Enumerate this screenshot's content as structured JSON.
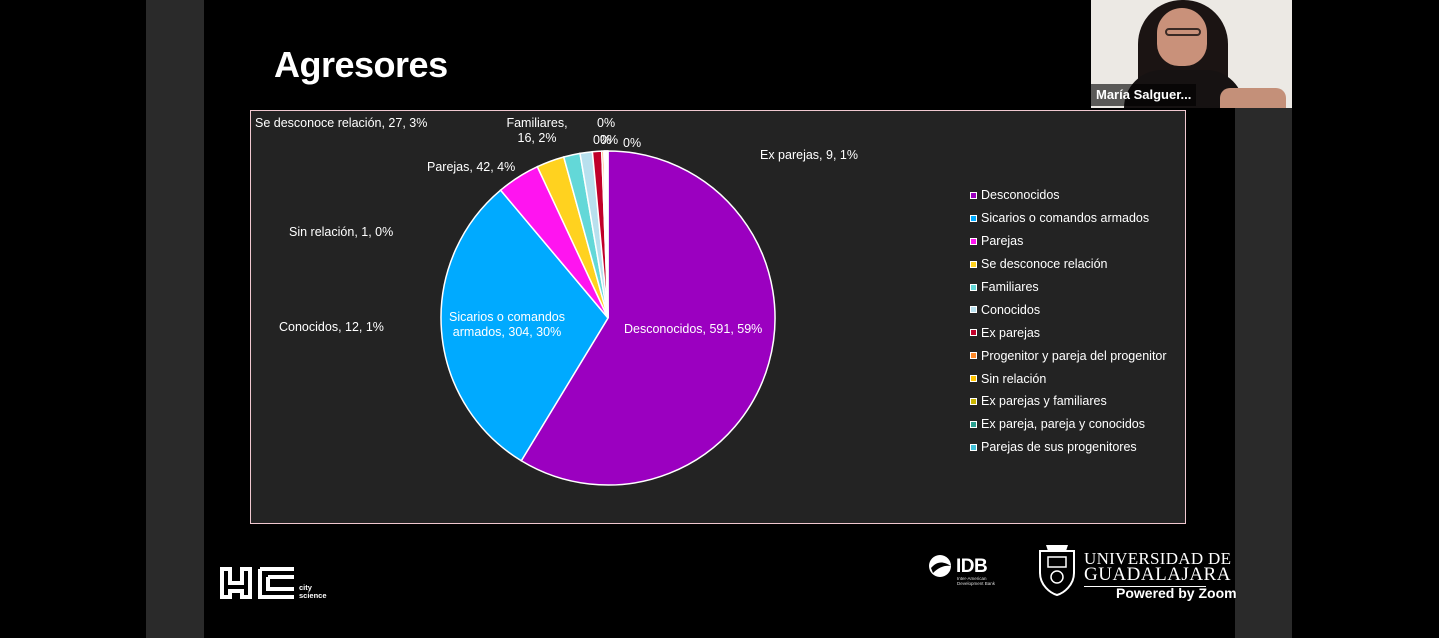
{
  "slide": {
    "title": "Agresores"
  },
  "participant": {
    "name": "María Salguer..."
  },
  "chart_data": {
    "type": "pie",
    "title": "",
    "slices": [
      {
        "name": "Desconocidos",
        "value": 591,
        "percent": 59,
        "color": "#9b00c0",
        "label": "Desconocidos, 591, 59%"
      },
      {
        "name": "Sicarios o comandos armados",
        "value": 304,
        "percent": 30,
        "color": "#00aaff",
        "label": "Sicarios o comandos armados, 304, 30%"
      },
      {
        "name": "Parejas",
        "value": 42,
        "percent": 4,
        "color": "#ff14f0",
        "label": "Parejas, 42, 4%"
      },
      {
        "name": "Se desconoce relación",
        "value": 27,
        "percent": 3,
        "color": "#ffd21f",
        "label": "Se desconoce relación, 27, 3%"
      },
      {
        "name": "Familiares",
        "value": 16,
        "percent": 2,
        "color": "#63d8d8",
        "label": "Familiares,\n16, 2%"
      },
      {
        "name": "Conocidos",
        "value": 12,
        "percent": 1,
        "color": "#b8e0ee",
        "label": "Conocidos, 12, 1%"
      },
      {
        "name": "Ex parejas",
        "value": 9,
        "percent": 1,
        "color": "#c0002a",
        "label": "Ex parejas, 9, 1%"
      },
      {
        "name": "Progenitor y pareja del progenitor",
        "value": 2,
        "percent": 0,
        "color": "#ff8a2a",
        "label": "0%"
      },
      {
        "name": "Sin relación",
        "value": 1,
        "percent": 0,
        "color": "#ffc400",
        "label": "Sin relación, 1, 0%"
      },
      {
        "name": "Ex parejas y familiares",
        "value": 1,
        "percent": 0,
        "color": "#c8b400",
        "label": "0%"
      },
      {
        "name": "Ex pareja, pareja y conocidos",
        "value": 1,
        "percent": 0,
        "color": "#2aa090",
        "label": "0%"
      },
      {
        "name": "Parejas de sus progenitores",
        "value": 1,
        "percent": 0,
        "color": "#3fc0d8",
        "label": "0%"
      }
    ],
    "legend_placement": "right"
  },
  "labels": {
    "desconocidos": "Desconocidos, 591, 59%",
    "sicarios_line1": "Sicarios o comandos",
    "sicarios_line2": "armados, 304, 30%",
    "parejas": "Parejas, 42, 4%",
    "se_desconoce": "Se desconoce relación, 27, 3%",
    "familiares_line1": "Familiares,",
    "familiares_line2": "16, 2%",
    "conocidos": "Conocidos, 12, 1%",
    "ex_parejas": "Ex parejas, 9, 1%",
    "sin_relacion": "Sin relación, 1, 0%",
    "zero_a": "0%",
    "zero_b": "0%",
    "zero_c": "0%",
    "zero_d": "0%"
  },
  "legend": [
    {
      "label": "Desconocidos",
      "color": "#9b00c0"
    },
    {
      "label": "Sicarios o comandos armados",
      "color": "#00aaff"
    },
    {
      "label": "Parejas",
      "color": "#ff14f0"
    },
    {
      "label": "Se desconoce relación",
      "color": "#ffd21f"
    },
    {
      "label": "Familiares",
      "color": "#63d8d8"
    },
    {
      "label": "Conocidos",
      "color": "#b8e0ee"
    },
    {
      "label": "Ex parejas",
      "color": "#c0002a"
    },
    {
      "label": "Progenitor y pareja del progenitor",
      "color": "#ff8a2a"
    },
    {
      "label": "Sin relación",
      "color": "#ffc400"
    },
    {
      "label": "Ex parejas y familiares",
      "color": "#c8b400"
    },
    {
      "label": "Ex pareja, pareja y conocidos",
      "color": "#2aa090"
    },
    {
      "label": "Parejas de sus progenitores",
      "color": "#3fc0d8"
    }
  ],
  "logos": {
    "city_line1": "city",
    "city_line2": "science",
    "idb": "IDB",
    "idb_sub_line1": "Inter-American",
    "idb_sub_line2": "Development Bank",
    "udg_line1": "UNIVERSIDAD DE",
    "udg_line2": "GUADALAJARA"
  },
  "zoom": {
    "branding": "Powered by Zoom"
  }
}
